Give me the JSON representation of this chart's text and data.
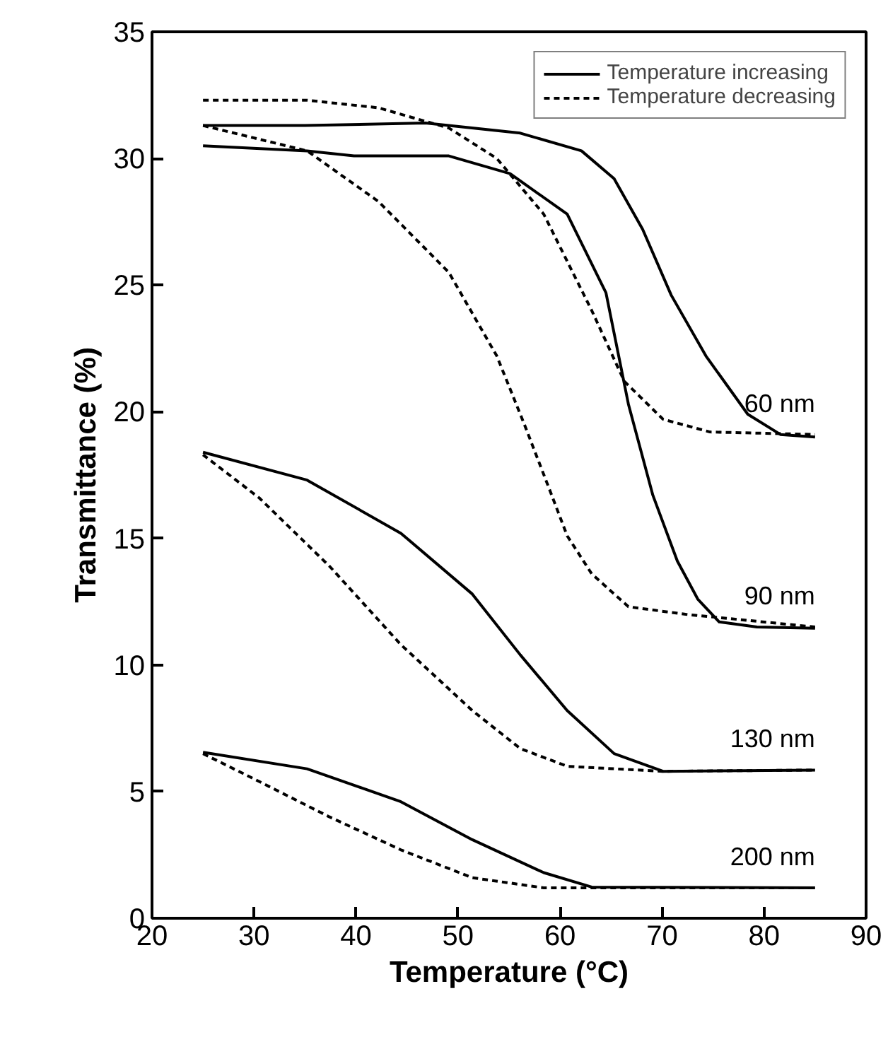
{
  "chart_data": {
    "type": "line",
    "xlabel": "Temperature (°C)",
    "ylabel": "Transmittance (%)",
    "xlim": [
      20,
      90
    ],
    "xticks": [
      20,
      30,
      40,
      50,
      60,
      70,
      80,
      90
    ],
    "ylim": [
      0,
      35
    ],
    "yticks": [
      0,
      5,
      10,
      15,
      20,
      25,
      30,
      35
    ],
    "grid": false,
    "legend": "top right",
    "marker": "none",
    "series": [
      {
        "name": "Temperature increasing",
        "color": "#000000",
        "line_style": "solid",
        "x": [
          25,
          35,
          46.8,
          56.1,
          62.1,
          65.3,
          68.1,
          70.9,
          74.3,
          78.4,
          81.6,
          85
        ],
        "values": [
          31.3,
          31.3,
          31.4,
          31.0,
          30.3,
          29.2,
          27.2,
          24.6,
          22.2,
          19.9,
          19.1,
          19.0
        ]
      },
      {
        "name": "Temperature decreasing",
        "color": "#000000",
        "line_style": "dashed",
        "x": [
          25,
          35.2,
          42.2,
          49.1,
          53.8,
          58.4,
          63.1,
          66.3,
          70.1,
          74.7,
          85
        ],
        "values": [
          32.3,
          32.3,
          32.0,
          31.2,
          30.0,
          27.8,
          24.0,
          21.2,
          19.7,
          19.2,
          19.1
        ]
      },
      {
        "color": "#000000",
        "line_style": "solid",
        "x": [
          25,
          35.2,
          39.8,
          49.1,
          55.1,
          60.7,
          64.5,
          66.7,
          69.1,
          71.5,
          73.5,
          75.6,
          79.3,
          85
        ],
        "values": [
          30.5,
          30.3,
          30.1,
          30.1,
          29.4,
          27.8,
          24.7,
          20.3,
          16.7,
          14.1,
          12.6,
          11.7,
          11.5,
          11.45
        ]
      },
      {
        "color": "#000000",
        "line_style": "dashed",
        "x": [
          25,
          35.2,
          42.2,
          49.1,
          53.8,
          56.5,
          58.9,
          60.7,
          63.1,
          66.7,
          72.3,
          85
        ],
        "values": [
          31.3,
          30.3,
          28.3,
          25.5,
          22.2,
          19.5,
          17.0,
          15.1,
          13.6,
          12.3,
          12.0,
          11.5
        ]
      },
      {
        "color": "#000000",
        "line_style": "solid",
        "x": [
          25,
          35.2,
          44.4,
          51.4,
          56.1,
          60.7,
          65.3,
          70.1,
          85
        ],
        "values": [
          18.4,
          17.3,
          15.2,
          12.8,
          10.4,
          8.2,
          6.5,
          5.8,
          5.85
        ]
      },
      {
        "color": "#000000",
        "line_style": "dashed",
        "x": [
          25,
          30.5,
          37.4,
          44.4,
          51.4,
          56.1,
          60.7,
          70,
          85
        ],
        "values": [
          18.3,
          16.6,
          13.9,
          10.8,
          8.2,
          6.7,
          6.0,
          5.8,
          5.85
        ]
      },
      {
        "color": "#000000",
        "line_style": "solid",
        "x": [
          25,
          35.2,
          44.4,
          51.4,
          58.4,
          63.1,
          85
        ],
        "values": [
          6.55,
          5.9,
          4.6,
          3.1,
          1.8,
          1.23,
          1.2
        ]
      },
      {
        "color": "#000000",
        "line_style": "dashed",
        "x": [
          25,
          30.5,
          37.4,
          44.4,
          51.4,
          58.4,
          85
        ],
        "values": [
          6.5,
          5.4,
          4.0,
          2.7,
          1.6,
          1.2,
          1.2
        ]
      }
    ],
    "annotations": [
      "60 nm",
      "90 nm",
      "130 nm",
      "200 nm"
    ]
  }
}
